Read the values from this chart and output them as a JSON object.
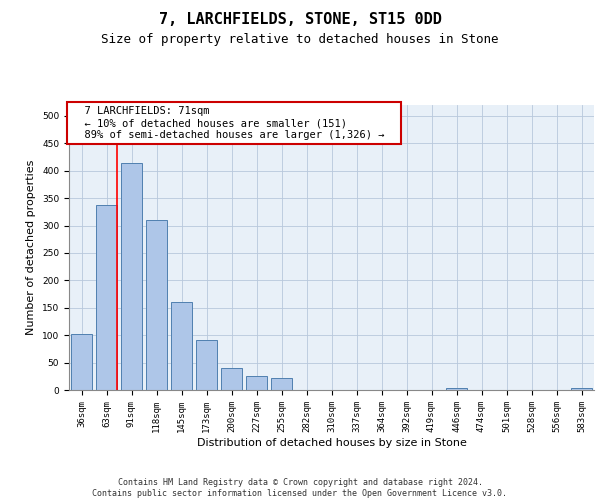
{
  "title": "7, LARCHFIELDS, STONE, ST15 0DD",
  "subtitle": "Size of property relative to detached houses in Stone",
  "xlabel": "Distribution of detached houses by size in Stone",
  "ylabel": "Number of detached properties",
  "categories": [
    "36sqm",
    "63sqm",
    "91sqm",
    "118sqm",
    "145sqm",
    "173sqm",
    "200sqm",
    "227sqm",
    "255sqm",
    "282sqm",
    "310sqm",
    "337sqm",
    "364sqm",
    "392sqm",
    "419sqm",
    "446sqm",
    "474sqm",
    "501sqm",
    "528sqm",
    "556sqm",
    "583sqm"
  ],
  "values": [
    103,
    338,
    415,
    310,
    160,
    92,
    40,
    25,
    22,
    0,
    0,
    0,
    0,
    0,
    0,
    3,
    0,
    0,
    0,
    0,
    3
  ],
  "bar_color": "#aec6e8",
  "bar_edge_color": "#5080b0",
  "background_color": "#e8f0f8",
  "annotation_text": "  7 LARCHFIELDS: 71sqm  \n  ← 10% of detached houses are smaller (151)  \n  89% of semi-detached houses are larger (1,326) →  ",
  "annotation_box_color": "#ffffff",
  "annotation_box_edge_color": "#cc0000",
  "red_line_x": 1.42,
  "ylim": [
    0,
    520
  ],
  "yticks": [
    0,
    50,
    100,
    150,
    200,
    250,
    300,
    350,
    400,
    450,
    500
  ],
  "footer": "Contains HM Land Registry data © Crown copyright and database right 2024.\nContains public sector information licensed under the Open Government Licence v3.0.",
  "title_fontsize": 11,
  "subtitle_fontsize": 9,
  "label_fontsize": 8,
  "tick_fontsize": 6.5,
  "annotation_fontsize": 7.5,
  "footer_fontsize": 6
}
